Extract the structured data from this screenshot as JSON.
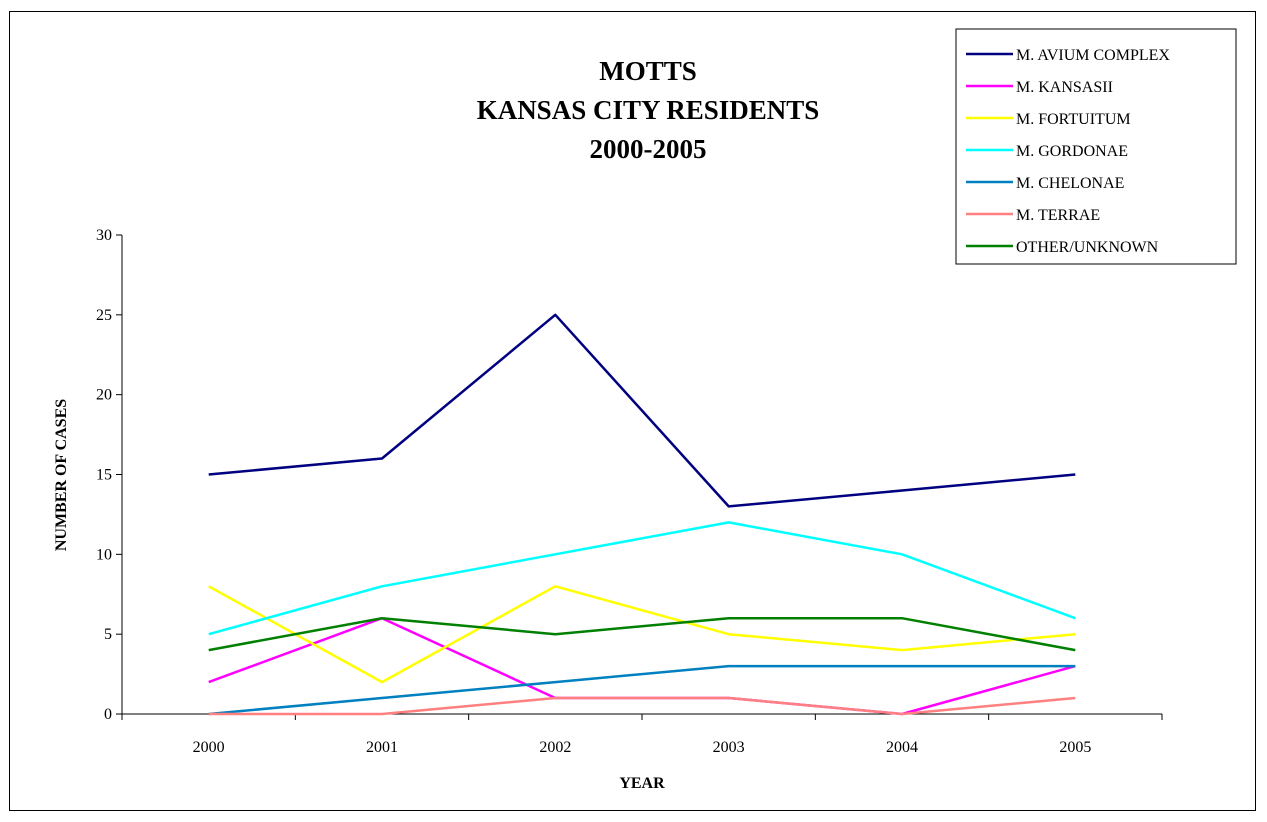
{
  "chart_data": {
    "type": "line",
    "title_lines": [
      "MOTTS",
      "KANSAS CITY RESIDENTS",
      "2000-2005"
    ],
    "xlabel": "YEAR",
    "ylabel": "NUMBER OF CASES",
    "categories": [
      "2000",
      "2001",
      "2002",
      "2003",
      "2004",
      "2005"
    ],
    "ylim": [
      0,
      30
    ],
    "yticks": [
      0,
      5,
      10,
      15,
      20,
      25,
      30
    ],
    "grid": false,
    "legend_position": "top-right",
    "series": [
      {
        "name": "M. AVIUM COMPLEX",
        "color": "#000080",
        "values": [
          15,
          16,
          25,
          13,
          14,
          15
        ]
      },
      {
        "name": "M. KANSASII",
        "color": "#ff00ff",
        "values": [
          2,
          6,
          1,
          1,
          0,
          3
        ]
      },
      {
        "name": "M. FORTUITUM",
        "color": "#ffff00",
        "values": [
          8,
          2,
          8,
          5,
          4,
          5
        ]
      },
      {
        "name": "M. GORDONAE",
        "color": "#00ffff",
        "values": [
          5,
          8,
          10,
          12,
          10,
          6
        ]
      },
      {
        "name": "M. CHELONAE",
        "color": "#0080c0",
        "values": [
          0,
          1,
          2,
          3,
          3,
          3
        ]
      },
      {
        "name": "M. TERRAE",
        "color": "#ff8080",
        "values": [
          0,
          0,
          1,
          1,
          0,
          1
        ]
      },
      {
        "name": "OTHER/UNKNOWN",
        "color": "#008000",
        "values": [
          4,
          6,
          5,
          6,
          6,
          4
        ]
      }
    ]
  }
}
